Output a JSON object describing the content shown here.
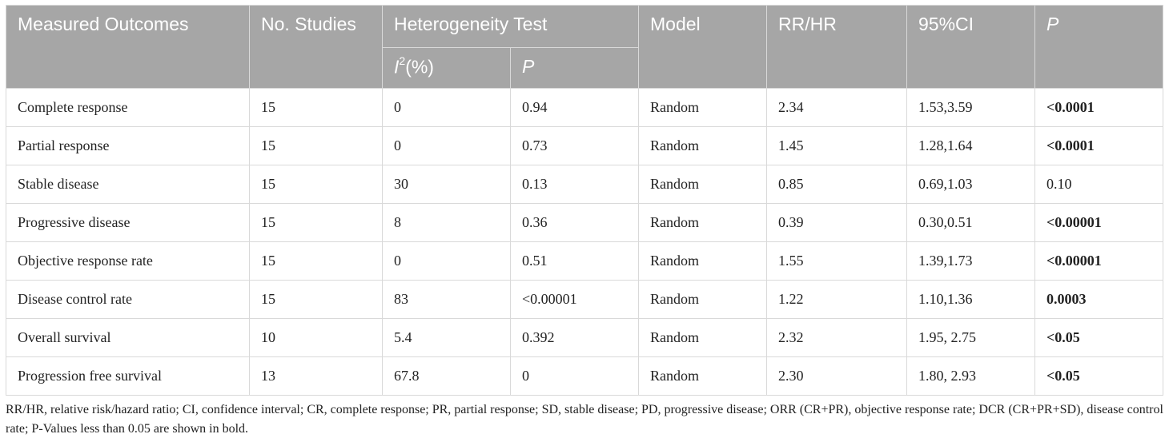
{
  "header": {
    "measured_outcomes": "Measured Outcomes",
    "no_studies": "No. Studies",
    "heterogeneity_test": "Heterogeneity Test",
    "i2_letter": "I",
    "i2_sup": "2",
    "i2_unit": "(%)",
    "het_p": "P",
    "model": "Model",
    "rr_hr": "RR/HR",
    "ci": "95%CI",
    "p": "P"
  },
  "rows": [
    {
      "outcome": "Complete response",
      "studies": "15",
      "i2": "0",
      "het_p": "0.94",
      "model": "Random",
      "rr": "2.34",
      "ci": "1.53,3.59",
      "p": "<0.0001",
      "p_bold": true
    },
    {
      "outcome": "Partial response",
      "studies": "15",
      "i2": "0",
      "het_p": "0.73",
      "model": "Random",
      "rr": "1.45",
      "ci": "1.28,1.64",
      "p": "<0.0001",
      "p_bold": true
    },
    {
      "outcome": "Stable disease",
      "studies": "15",
      "i2": "30",
      "het_p": "0.13",
      "model": "Random",
      "rr": "0.85",
      "ci": "0.69,1.03",
      "p": "0.10",
      "p_bold": false
    },
    {
      "outcome": "Progressive disease",
      "studies": "15",
      "i2": "8",
      "het_p": "0.36",
      "model": "Random",
      "rr": "0.39",
      "ci": "0.30,0.51",
      "p": "<0.00001",
      "p_bold": true
    },
    {
      "outcome": "Objective response rate",
      "studies": "15",
      "i2": "0",
      "het_p": "0.51",
      "model": "Random",
      "rr": "1.55",
      "ci": "1.39,1.73",
      "p": "<0.00001",
      "p_bold": true
    },
    {
      "outcome": "Disease control rate",
      "studies": "15",
      "i2": "83",
      "het_p": "<0.00001",
      "model": "Random",
      "rr": "1.22",
      "ci": "1.10,1.36",
      "p": "0.0003",
      "p_bold": true
    },
    {
      "outcome": "Overall survival",
      "studies": "10",
      "i2": "5.4",
      "het_p": "0.392",
      "model": "Random",
      "rr": "2.32",
      "ci": "1.95, 2.75",
      "p": "<0.05",
      "p_bold": true
    },
    {
      "outcome": "Progression free survival",
      "studies": "13",
      "i2": "67.8",
      "het_p": "0",
      "model": "Random",
      "rr": "2.30",
      "ci": "1.80, 2.93",
      "p": "<0.05",
      "p_bold": true
    }
  ],
  "footnote": "RR/HR, relative risk/hazard ratio; CI, confidence interval; CR, complete response; PR, partial response; SD, stable disease; PD, progressive disease; ORR (CR+PR), objective response rate; DCR (CR+PR+SD), disease control rate; P-Values less than 0.05 are shown in bold.",
  "colors": {
    "header_bg": "#a6a6a6",
    "header_text": "#ffffff",
    "grid_line": "#d9d9d9"
  }
}
